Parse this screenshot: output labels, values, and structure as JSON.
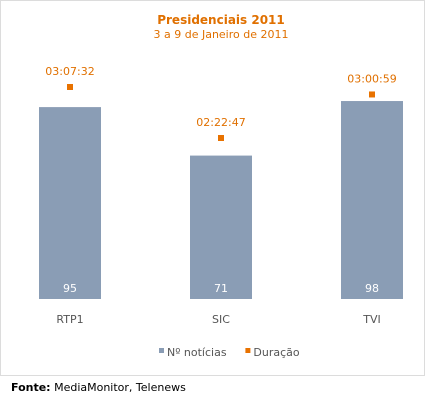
{
  "chart_data": {
    "type": "bar",
    "title": "Presidenciais 2011",
    "subtitle": "3 a 9 de Janeiro de 2011",
    "categories": [
      "RTP1",
      "SIC",
      "TVI"
    ],
    "series": [
      {
        "name": "Nº notícias",
        "values": [
          95,
          71,
          98
        ],
        "color": "#8a9db5",
        "kind": "bar"
      },
      {
        "name": "Duração",
        "values": [
          "03:07:32",
          "02:22:47",
          "03:00:59"
        ],
        "color": "#e87200",
        "kind": "point"
      }
    ],
    "ylim": [
      0,
      100
    ],
    "grid": false,
    "legend": "bottom"
  },
  "source": {
    "label": "Fonte:",
    "text": "MediaMonitor, Telenews"
  }
}
